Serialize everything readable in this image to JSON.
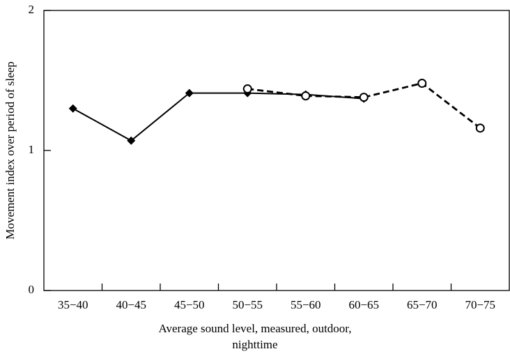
{
  "chart_data": {
    "type": "line",
    "ylabel": "Movement index over period of sleep",
    "xlabel": [
      "Average sound level, measured, outdoor,",
      "nighttime"
    ],
    "categories": [
      "35−40",
      "40−45",
      "45−50",
      "50−55",
      "55−60",
      "60−65",
      "65−70",
      "70−75"
    ],
    "series": [
      {
        "color": "#000000",
        "dash": false,
        "marker": "diamond",
        "values": [
          1.3,
          1.07,
          1.41,
          1.41,
          1.4,
          1.37,
          null,
          null
        ]
      },
      {
        "color": "#000000",
        "dash": true,
        "marker": "circle-open",
        "values": [
          null,
          null,
          null,
          1.44,
          1.39,
          1.38,
          1.48,
          1.16
        ]
      }
    ],
    "ylim": [
      0,
      2
    ],
    "yticks": [
      0,
      1,
      2
    ],
    "grid": false
  }
}
